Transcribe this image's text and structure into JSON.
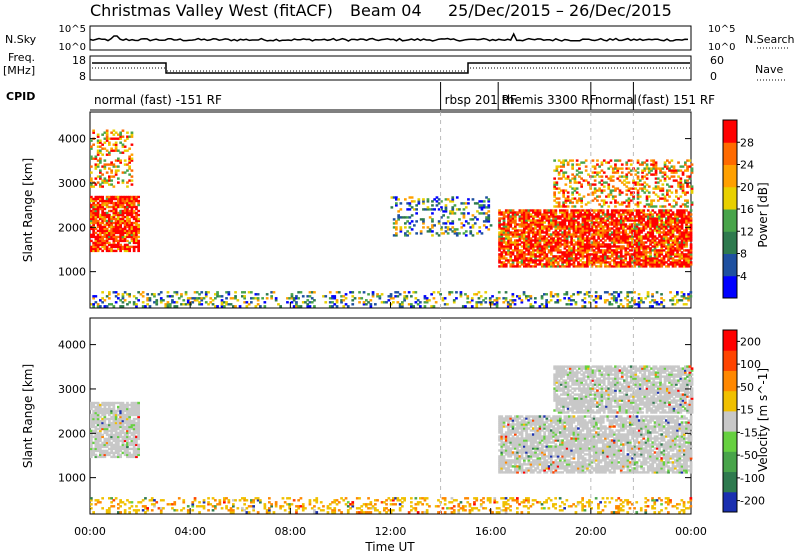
{
  "header": {
    "station": "Christmas Valley West (fitACF)",
    "beam": "Beam 04",
    "date_range": "25/Dec/2015 – 26/Dec/2015"
  },
  "strip_labels": {
    "nsky": "N.Sky",
    "nsearch": "N.Search",
    "freq_line1": "Freq.",
    "freq_line2": "[MHz]",
    "nave": "Nave",
    "cpid": "CPID",
    "nsky_ticks": [
      "10^5",
      "10^0"
    ],
    "nsearch_ticks": [
      "10^5",
      "10^0"
    ],
    "freq_ticks": [
      "18",
      "8"
    ],
    "nave_ticks": [
      "60",
      "0"
    ]
  },
  "cpid_segments": [
    {
      "label": "normal (fast) -151 RF",
      "start_h": 0
    },
    {
      "label": "rbsp 201 RF",
      "start_h": 14
    },
    {
      "label": "themis 3300 RF",
      "start_h": 16.3
    },
    {
      "label": "normal",
      "start_h": 20
    },
    {
      "label": "(fast) 151 RF",
      "start_h": 21.7
    }
  ],
  "x_axis": {
    "label": "Time UT",
    "ticks": [
      "00:00",
      "04:00",
      "08:00",
      "12:00",
      "16:00",
      "20:00",
      "00:00"
    ],
    "range_h": [
      0,
      24
    ]
  },
  "y_axis": {
    "label": "Slant Range [km]",
    "ticks": [
      1000,
      2000,
      3000,
      4000
    ],
    "range": [
      180,
      4600
    ]
  },
  "chart_data": [
    {
      "type": "heatmap",
      "panel": "power",
      "colorbar_label": "Power [dB]",
      "colorbar_ticks": [
        4,
        8,
        12,
        16,
        20,
        24,
        28
      ],
      "colorbar_range": [
        0,
        32
      ],
      "colors": [
        "#0000ff",
        "#1e50a0",
        "#2e7a4e",
        "#48a44a",
        "#e8d000",
        "#ffa000",
        "#ff6a00",
        "#ff0000"
      ],
      "regions": [
        {
          "t": [
            0.0,
            1.9
          ],
          "r": [
            1450,
            2700
          ],
          "level": "high"
        },
        {
          "t": [
            0.0,
            1.7
          ],
          "r": [
            2900,
            4200
          ],
          "level": "mixed"
        },
        {
          "t": [
            16.3,
            24.0
          ],
          "r": [
            1100,
            2400
          ],
          "level": "high"
        },
        {
          "t": [
            18.5,
            24.0
          ],
          "r": [
            2450,
            3500
          ],
          "level": "mixed"
        },
        {
          "t": [
            12.0,
            16.0
          ],
          "r": [
            1800,
            2700
          ],
          "level": "low"
        },
        {
          "t": [
            0.0,
            24.0
          ],
          "r": [
            200,
            550
          ],
          "level": "low"
        }
      ]
    },
    {
      "type": "heatmap",
      "panel": "velocity",
      "colorbar_label": "Velocity [m s^-1]",
      "colorbar_ticks": [
        200,
        100,
        50,
        15,
        -15,
        -50,
        -100,
        -200
      ],
      "colorbar_range": [
        -250,
        250
      ],
      "colors": [
        "#1a2fb0",
        "#2e7a4e",
        "#48a44a",
        "#66d040",
        "#c8c8c8",
        "#f0c000",
        "#ff8800",
        "#ff4400",
        "#ff0000"
      ],
      "regions": [
        {
          "t": [
            0.0,
            1.9
          ],
          "r": [
            1450,
            2700
          ],
          "level": "ground"
        },
        {
          "t": [
            16.3,
            24.0
          ],
          "r": [
            1100,
            2400
          ],
          "level": "ground"
        },
        {
          "t": [
            18.5,
            24.0
          ],
          "r": [
            2450,
            3500
          ],
          "level": "ground"
        },
        {
          "t": [
            0.0,
            24.0
          ],
          "r": [
            200,
            550
          ],
          "level": "positive"
        }
      ]
    }
  ]
}
